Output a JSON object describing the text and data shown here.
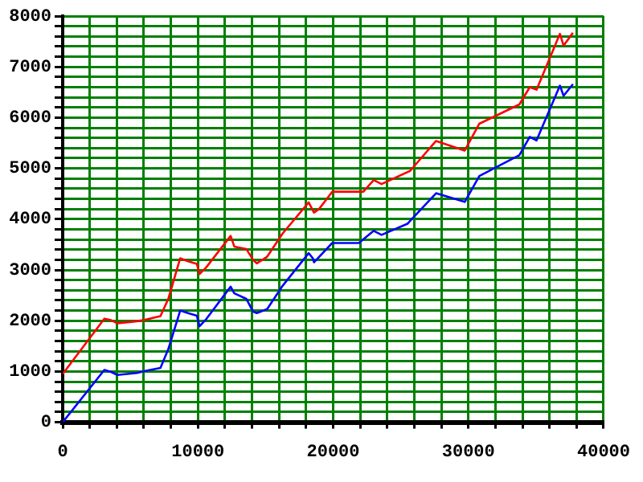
{
  "chart_data": {
    "type": "line",
    "marker": "none",
    "grid": true,
    "legend": false,
    "xlim": [
      0,
      40000
    ],
    "ylim": [
      0,
      8000
    ],
    "xticks": [
      0,
      {
        "value": 2000,
        "label": null
      },
      {
        "value": 4000,
        "label": null
      },
      {
        "value": 6000,
        "label": null
      },
      {
        "value": 8000,
        "label": null
      },
      10000,
      {
        "value": 12000,
        "label": null
      },
      {
        "value": 14000,
        "label": null
      },
      {
        "value": 16000,
        "label": null
      },
      {
        "value": 18000,
        "label": null
      },
      20000,
      {
        "value": 22000,
        "label": null
      },
      {
        "value": 24000,
        "label": null
      },
      {
        "value": 26000,
        "label": null
      },
      {
        "value": 28000,
        "label": null
      },
      30000,
      {
        "value": 32000,
        "label": null
      },
      {
        "value": 34000,
        "label": null
      },
      {
        "value": 36000,
        "label": null
      },
      {
        "value": 38000,
        "label": null
      },
      40000
    ],
    "yticks": [
      0,
      {
        "value": 200,
        "label": null
      },
      {
        "value": 400,
        "label": null
      },
      {
        "value": 600,
        "label": null
      },
      {
        "value": 800,
        "label": null
      },
      1000,
      {
        "value": 1200,
        "label": null
      },
      {
        "value": 1400,
        "label": null
      },
      {
        "value": 1600,
        "label": null
      },
      {
        "value": 1800,
        "label": null
      },
      2000,
      {
        "value": 2200,
        "label": null
      },
      {
        "value": 2400,
        "label": null
      },
      {
        "value": 2600,
        "label": null
      },
      {
        "value": 2800,
        "label": null
      },
      3000,
      {
        "value": 3200,
        "label": null
      },
      {
        "value": 3400,
        "label": null
      },
      {
        "value": 3600,
        "label": null
      },
      {
        "value": 3800,
        "label": null
      },
      4000,
      {
        "value": 4200,
        "label": null
      },
      {
        "value": 4400,
        "label": null
      },
      {
        "value": 4600,
        "label": null
      },
      {
        "value": 4800,
        "label": null
      },
      5000,
      {
        "value": 5200,
        "label": null
      },
      {
        "value": 5400,
        "label": null
      },
      {
        "value": 5600,
        "label": null
      },
      {
        "value": 5800,
        "label": null
      },
      6000,
      {
        "value": 6200,
        "label": null
      },
      {
        "value": 6400,
        "label": null
      },
      {
        "value": 6600,
        "label": null
      },
      {
        "value": 6800,
        "label": null
      },
      7000,
      {
        "value": 7200,
        "label": null
      },
      {
        "value": 7400,
        "label": null
      },
      {
        "value": 7600,
        "label": null
      },
      {
        "value": 7800,
        "label": null
      },
      8000
    ],
    "series": [
      {
        "color": "#ff0000",
        "x": [
          0,
          3080,
          3580,
          4040,
          5500,
          6100,
          7230,
          7810,
          8690,
          9270,
          9920,
          10120,
          10610,
          12420,
          12690,
          13580,
          14080,
          14350,
          15120,
          16270,
          18190,
          18580,
          18960,
          19930,
          22230,
          23000,
          23580,
          25690,
          27610,
          29730,
          30810,
          33770,
          34540,
          35040,
          36770,
          37040,
          37730
        ],
        "values": [
          950,
          2040,
          2010,
          1950,
          1990,
          2020,
          2090,
          2430,
          3230,
          3170,
          3120,
          2920,
          3050,
          3670,
          3460,
          3410,
          3200,
          3130,
          3260,
          3720,
          4330,
          4130,
          4200,
          4540,
          4540,
          4770,
          4690,
          4950,
          5540,
          5350,
          5880,
          6260,
          6600,
          6550,
          7650,
          7420,
          7670
        ]
      },
      {
        "color": "#0000ff",
        "x": [
          0,
          3080,
          3580,
          4040,
          5500,
          6100,
          7230,
          7810,
          8690,
          9270,
          9920,
          10120,
          10610,
          12420,
          12690,
          13580,
          14080,
          14350,
          15120,
          16270,
          18190,
          18500,
          18580,
          19930,
          21900,
          23000,
          23580,
          25500,
          27610,
          29730,
          30810,
          33770,
          34540,
          35040,
          36770,
          37040,
          37730
        ],
        "values": [
          0,
          1030,
          990,
          930,
          970,
          1010,
          1070,
          1440,
          2200,
          2150,
          2100,
          1890,
          2030,
          2670,
          2540,
          2430,
          2180,
          2150,
          2230,
          2690,
          3330,
          3230,
          3150,
          3530,
          3530,
          3770,
          3690,
          3910,
          4510,
          4340,
          4850,
          5260,
          5620,
          5550,
          6630,
          6430,
          6660
        ]
      }
    ]
  }
}
